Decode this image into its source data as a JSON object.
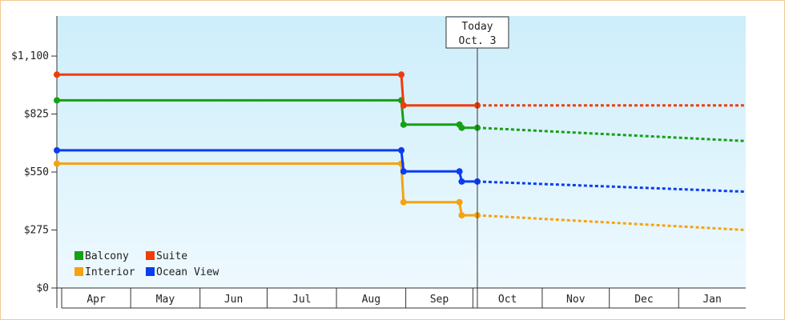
{
  "chart_data": {
    "type": "line",
    "title": "",
    "xlabel": "",
    "ylabel": "",
    "ylim": [
      0,
      1290
    ],
    "y_ticks": [
      {
        "value": 0,
        "label": "$0"
      },
      {
        "value": 275,
        "label": "$275"
      },
      {
        "value": 550,
        "label": "$550"
      },
      {
        "value": 825,
        "label": "$825"
      },
      {
        "value": 1100,
        "label": "$1,100"
      }
    ],
    "x_range": [
      "2023-03-29",
      "2024-01-31"
    ],
    "months": [
      {
        "label": "Apr",
        "start": "2023-04-01",
        "end": "2023-04-30"
      },
      {
        "label": "May",
        "start": "2023-05-01",
        "end": "2023-05-31"
      },
      {
        "label": "Jun",
        "start": "2023-06-01",
        "end": "2023-06-30"
      },
      {
        "label": "Jul",
        "start": "2023-07-01",
        "end": "2023-07-31"
      },
      {
        "label": "Aug",
        "start": "2023-08-01",
        "end": "2023-08-31"
      },
      {
        "label": "Sep",
        "start": "2023-09-01",
        "end": "2023-09-30"
      },
      {
        "label": "Oct",
        "start": "2023-10-01",
        "end": "2023-10-31"
      },
      {
        "label": "Nov",
        "start": "2023-11-01",
        "end": "2023-11-30"
      },
      {
        "label": "Dec",
        "start": "2023-12-01",
        "end": "2023-12-31"
      },
      {
        "label": "Jan",
        "start": "2024-01-01",
        "end": "2024-01-31"
      }
    ],
    "grid": false,
    "legend_position": "bottom-left",
    "today": {
      "date": "2023-10-03",
      "label_line1": "Today",
      "label_line2": "Oct. 3"
    },
    "series": [
      {
        "name": "Balcony",
        "color": "#15a015",
        "history": [
          {
            "date": "2023-03-29",
            "value": 890
          },
          {
            "date": "2023-08-30",
            "value": 890
          },
          {
            "date": "2023-08-31",
            "value": 775
          },
          {
            "date": "2023-09-25",
            "value": 775
          },
          {
            "date": "2023-09-26",
            "value": 760
          },
          {
            "date": "2023-10-03",
            "value": 760
          }
        ],
        "forecast": [
          {
            "date": "2023-10-03",
            "value": 760
          },
          {
            "date": "2024-01-31",
            "value": 697
          }
        ]
      },
      {
        "name": "Suite",
        "color": "#f03c0a",
        "history": [
          {
            "date": "2023-03-29",
            "value": 1012
          },
          {
            "date": "2023-08-30",
            "value": 1012
          },
          {
            "date": "2023-08-31",
            "value": 866
          },
          {
            "date": "2023-10-03",
            "value": 866
          }
        ],
        "forecast": [
          {
            "date": "2023-10-03",
            "value": 866
          },
          {
            "date": "2024-01-31",
            "value": 866
          }
        ]
      },
      {
        "name": "Interior",
        "color": "#f5a30f",
        "history": [
          {
            "date": "2023-03-29",
            "value": 590
          },
          {
            "date": "2023-08-30",
            "value": 590
          },
          {
            "date": "2023-08-31",
            "value": 407
          },
          {
            "date": "2023-09-25",
            "value": 407
          },
          {
            "date": "2023-09-26",
            "value": 345
          },
          {
            "date": "2023-10-03",
            "value": 345
          }
        ],
        "forecast": [
          {
            "date": "2023-10-03",
            "value": 345
          },
          {
            "date": "2024-01-31",
            "value": 275
          }
        ]
      },
      {
        "name": "Ocean View",
        "color": "#0a3cf0",
        "history": [
          {
            "date": "2023-03-29",
            "value": 653
          },
          {
            "date": "2023-08-30",
            "value": 653
          },
          {
            "date": "2023-08-31",
            "value": 553
          },
          {
            "date": "2023-09-25",
            "value": 553
          },
          {
            "date": "2023-09-26",
            "value": 505
          },
          {
            "date": "2023-10-03",
            "value": 505
          }
        ],
        "forecast": [
          {
            "date": "2023-10-03",
            "value": 505
          },
          {
            "date": "2024-01-31",
            "value": 457
          }
        ]
      }
    ],
    "legend": [
      {
        "name": "Balcony",
        "color": "#15a015"
      },
      {
        "name": "Suite",
        "color": "#f03c0a"
      },
      {
        "name": "Interior",
        "color": "#f5a30f"
      },
      {
        "name": "Ocean View",
        "color": "#0a3cf0"
      }
    ],
    "plot_background": {
      "top": "#cdeefb",
      "bottom": "#eef9fe"
    }
  }
}
